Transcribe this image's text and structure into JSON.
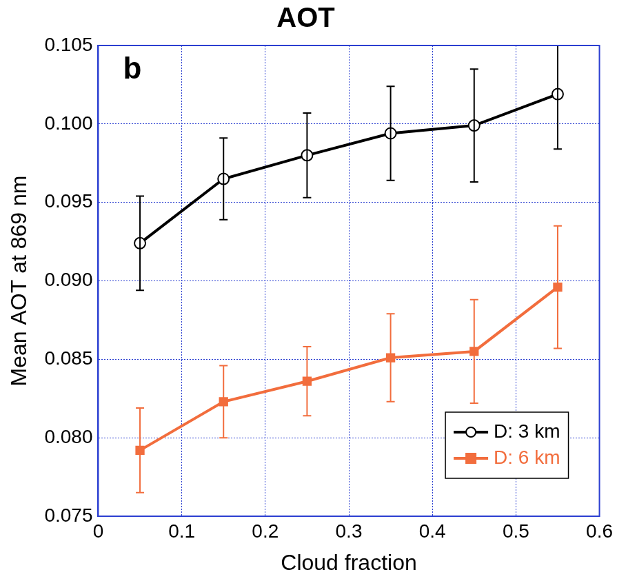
{
  "chart_data": {
    "type": "line",
    "title": "AOT",
    "annotations": [
      "b"
    ],
    "x_label": "Cloud fraction",
    "y_label": "Mean AOT at 869 nm",
    "x": [
      0.05,
      0.15,
      0.25,
      0.35,
      0.45,
      0.55
    ],
    "series": [
      {
        "name": "D: 3 km",
        "color": "#000000",
        "marker": "open_circle",
        "line_style": "solid",
        "values": [
          0.0924,
          0.0965,
          0.098,
          0.0994,
          0.0999,
          0.1019
        ],
        "errors": [
          0.003,
          0.0026,
          0.0027,
          0.003,
          0.0036,
          0.0035
        ]
      },
      {
        "name": "D: 6 km",
        "color": "#f26d3d",
        "marker": "square",
        "line_style": "solid",
        "values": [
          0.0792,
          0.0823,
          0.0836,
          0.0851,
          0.0855,
          0.0896
        ],
        "errors": [
          0.0027,
          0.0023,
          0.0022,
          0.0028,
          0.0033,
          0.0039
        ]
      }
    ],
    "xlim": [
      0,
      0.6
    ],
    "xticks": [
      0,
      0.1,
      0.2,
      0.3,
      0.4,
      0.5,
      0.6
    ],
    "ylim": [
      0.075,
      0.105
    ],
    "yticks": [
      {
        "value": 0.075,
        "label": "0.075"
      },
      {
        "value": 0.08,
        "label": "0.080"
      },
      {
        "value": 0.085,
        "label": "0.085"
      },
      {
        "value": 0.09,
        "label": "0.090"
      },
      {
        "value": 0.095,
        "label": "0.095"
      },
      {
        "value": 0.1,
        "label": "0.100"
      },
      {
        "value": 0.105,
        "label": "0.105"
      }
    ],
    "grid": true,
    "legend": "lower right"
  }
}
